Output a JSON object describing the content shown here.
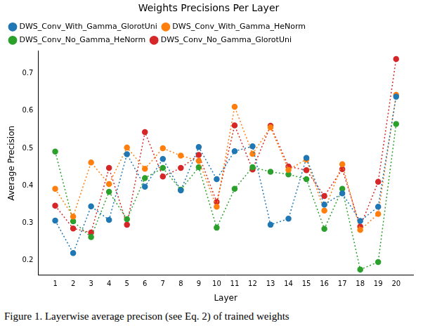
{
  "chart_data": {
    "type": "line",
    "title": "Weights Precisions Per Layer",
    "x_label": "Layer",
    "y_label": "Average Precision",
    "caption": "Figure 1. Layerwise average precison (see Eq. 2) of trained weights",
    "x": [
      1,
      2,
      3,
      4,
      5,
      6,
      7,
      8,
      9,
      10,
      11,
      12,
      13,
      14,
      15,
      16,
      17,
      18,
      19,
      20
    ],
    "xlim": [
      0.05,
      20.95
    ],
    "xticks": [
      1,
      2,
      3,
      4,
      5,
      6,
      7,
      8,
      9,
      10,
      11,
      12,
      13,
      14,
      15,
      16,
      17,
      18,
      19,
      20
    ],
    "ylim": [
      0.16,
      0.76
    ],
    "yticks": [
      0.2,
      0.3,
      0.4,
      0.5,
      0.6,
      0.7
    ],
    "grid": false,
    "legend": "upper left",
    "marker": "circle",
    "line_style": "dotted",
    "series": [
      {
        "name": "DWS_Conv_With_Gamma_GlorotUni",
        "color": "#1f77b4",
        "values": [
          0.306,
          0.219,
          0.344,
          0.308,
          0.484,
          0.397,
          0.471,
          0.387,
          0.503,
          0.417,
          0.492,
          0.505,
          0.295,
          0.311,
          0.474,
          0.349,
          0.379,
          0.305,
          0.343,
          0.638
        ]
      },
      {
        "name": "DWS_Conv_With_Gamma_HeNorm",
        "color": "#ff7f0e",
        "values": [
          0.391,
          0.317,
          0.462,
          0.404,
          0.502,
          0.445,
          0.5,
          0.48,
          0.466,
          0.343,
          0.611,
          0.485,
          0.556,
          0.442,
          0.47,
          0.333,
          0.457,
          0.281,
          0.324,
          0.643
        ]
      },
      {
        "name": "DWS_Conv_No_Gamma_HeNorm",
        "color": "#2ca02c",
        "values": [
          0.491,
          0.304,
          0.262,
          0.383,
          0.31,
          0.42,
          0.447,
          0.389,
          0.449,
          0.287,
          0.391,
          0.449,
          0.437,
          0.43,
          0.417,
          0.284,
          0.391,
          0.175,
          0.195,
          0.565
        ]
      },
      {
        "name": "DWS_Conv_No_Gamma_GlorotUni",
        "color": "#d62728",
        "values": [
          0.346,
          0.285,
          0.274,
          0.447,
          0.295,
          0.543,
          0.424,
          0.447,
          0.482,
          0.356,
          0.561,
          0.443,
          0.56,
          0.451,
          0.441,
          0.372,
          0.444,
          0.29,
          0.41,
          0.739
        ]
      }
    ]
  }
}
